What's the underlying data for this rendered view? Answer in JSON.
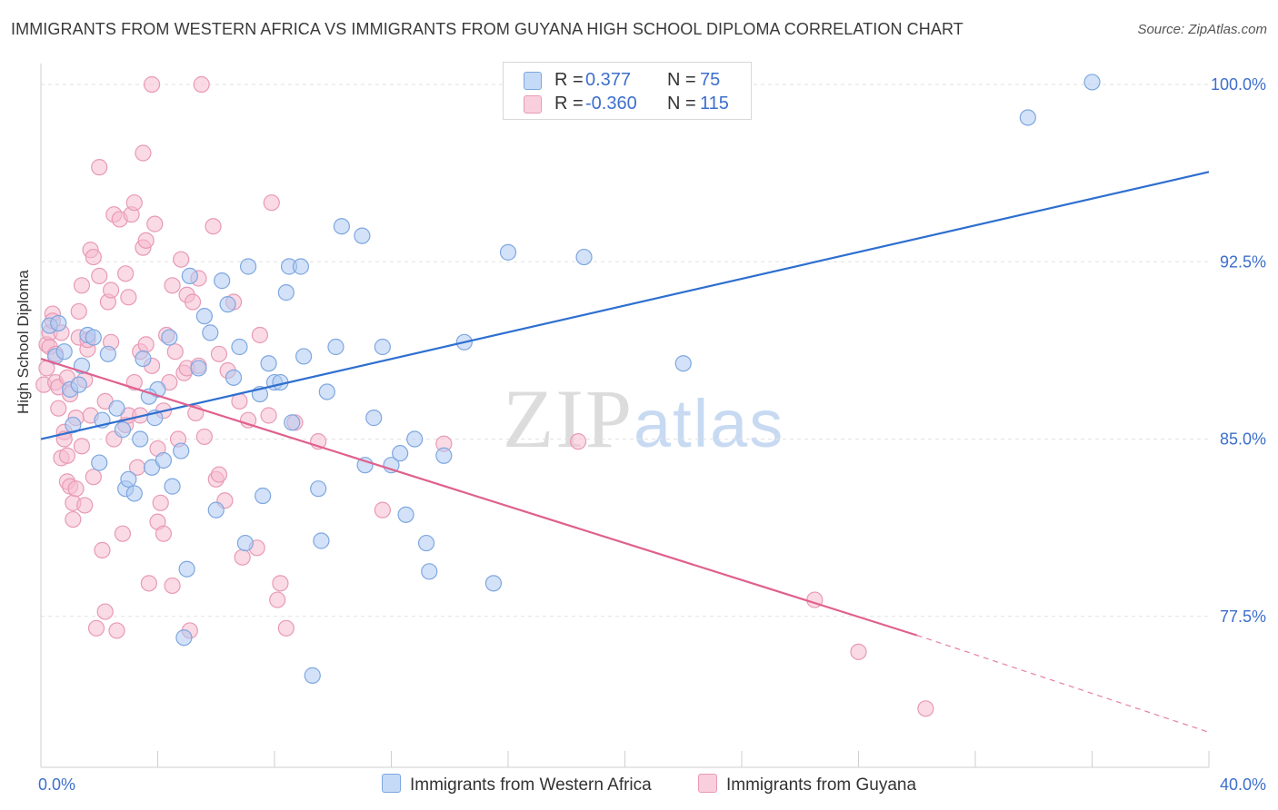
{
  "title": "IMMIGRANTS FROM WESTERN AFRICA VS IMMIGRANTS FROM GUYANA HIGH SCHOOL DIPLOMA CORRELATION CHART",
  "source": "Source: ZipAtlas.com",
  "watermark": {
    "zip": "ZIP",
    "atlas": "atlas"
  },
  "legend": {
    "r_label": "R =",
    "n_label": "N =",
    "rows": [
      {
        "r": "0.377",
        "n": "75",
        "color": "#9cc0ef"
      },
      {
        "r": "-0.360",
        "n": "115",
        "color": "#f4a9c2"
      }
    ]
  },
  "colors": {
    "blue_fill": "#aecbf2",
    "blue_stroke": "#7ea7e0",
    "blue_line": "#2e6fcf",
    "pink_fill": "#f6bcd0",
    "pink_stroke": "#e89ab5",
    "pink_line": "#e0608e",
    "tick_text": "#3d6fcc",
    "grid": "#e2e2e2"
  },
  "chart_data": {
    "type": "scatter",
    "title": "IMMIGRANTS FROM WESTERN AFRICA VS IMMIGRANTS FROM GUYANA HIGH SCHOOL DIPLOMA CORRELATION CHART",
    "xlabel": "",
    "ylabel": "High School Diploma",
    "xlim": [
      0,
      40
    ],
    "ylim": [
      71.5,
      100.5
    ],
    "x_tick_labels": [
      "0.0%",
      "40.0%"
    ],
    "y_ticks": [
      77.5,
      85.0,
      92.5,
      100.0
    ],
    "y_tick_labels": [
      "77.5%",
      "85.0%",
      "92.5%",
      "100.0%"
    ],
    "grid": true,
    "legend_position": "top-center",
    "series": [
      {
        "name": "Immigrants from Western Africa",
        "r": 0.377,
        "n": 75,
        "trend": {
          "x0": 0.0,
          "y0": 85.0,
          "x1": 40.0,
          "y1": 96.3
        },
        "points": [
          [
            0.3,
            89.8
          ],
          [
            0.5,
            88.5
          ],
          [
            0.6,
            89.9
          ],
          [
            0.8,
            88.7
          ],
          [
            1.0,
            87.1
          ],
          [
            1.1,
            85.6
          ],
          [
            1.4,
            88.1
          ],
          [
            1.6,
            89.4
          ],
          [
            1.8,
            89.3
          ],
          [
            2.1,
            85.8
          ],
          [
            2.3,
            88.6
          ],
          [
            2.6,
            86.3
          ],
          [
            2.8,
            85.4
          ],
          [
            2.9,
            82.9
          ],
          [
            3.0,
            83.3
          ],
          [
            3.2,
            82.7
          ],
          [
            3.4,
            85.0
          ],
          [
            3.5,
            88.4
          ],
          [
            3.8,
            83.8
          ],
          [
            3.9,
            85.9
          ],
          [
            4.0,
            87.1
          ],
          [
            4.2,
            84.1
          ],
          [
            4.4,
            89.3
          ],
          [
            4.5,
            83.0
          ],
          [
            4.8,
            84.5
          ],
          [
            5.0,
            79.5
          ],
          [
            5.1,
            91.9
          ],
          [
            5.4,
            88.0
          ],
          [
            5.6,
            90.2
          ],
          [
            5.8,
            89.5
          ],
          [
            6.0,
            82.0
          ],
          [
            6.2,
            91.7
          ],
          [
            6.4,
            90.7
          ],
          [
            6.6,
            87.6
          ],
          [
            6.8,
            88.9
          ],
          [
            7.0,
            80.6
          ],
          [
            7.1,
            92.3
          ],
          [
            7.5,
            86.9
          ],
          [
            7.6,
            82.6
          ],
          [
            7.8,
            88.2
          ],
          [
            8.0,
            87.4
          ],
          [
            8.2,
            87.4
          ],
          [
            8.4,
            91.2
          ],
          [
            8.5,
            92.3
          ],
          [
            8.6,
            85.7
          ],
          [
            8.9,
            92.3
          ],
          [
            9.0,
            88.5
          ],
          [
            9.3,
            75.0
          ],
          [
            9.5,
            82.9
          ],
          [
            9.6,
            80.7
          ],
          [
            9.8,
            87.0
          ],
          [
            10.1,
            88.9
          ],
          [
            10.3,
            94.0
          ],
          [
            11.0,
            93.6
          ],
          [
            11.1,
            83.9
          ],
          [
            11.4,
            85.9
          ],
          [
            11.7,
            88.9
          ],
          [
            12.0,
            83.9
          ],
          [
            12.3,
            84.4
          ],
          [
            12.5,
            81.8
          ],
          [
            12.8,
            85.0
          ],
          [
            13.2,
            80.6
          ],
          [
            13.3,
            79.4
          ],
          [
            13.8,
            84.3
          ],
          [
            14.5,
            89.1
          ],
          [
            15.5,
            78.9
          ],
          [
            16.0,
            92.9
          ],
          [
            18.6,
            92.7
          ],
          [
            22.0,
            88.2
          ],
          [
            33.8,
            98.6
          ],
          [
            36.0,
            100.1
          ],
          [
            4.9,
            76.6
          ],
          [
            1.3,
            87.3
          ],
          [
            3.7,
            86.8
          ],
          [
            2.0,
            84.0
          ]
        ]
      },
      {
        "name": "Immigrants from Guyana",
        "r": -0.36,
        "n": 115,
        "trend": {
          "x0": 0.0,
          "y0": 88.4,
          "x1": 30.0,
          "y1": 76.7
        },
        "trend_dashed": {
          "x0": 30.0,
          "y0": 76.7,
          "x1": 40.0,
          "y1": 72.6
        },
        "points": [
          [
            0.1,
            87.3
          ],
          [
            0.2,
            89.0
          ],
          [
            0.2,
            88.0
          ],
          [
            0.3,
            89.5
          ],
          [
            0.3,
            88.9
          ],
          [
            0.4,
            90.3
          ],
          [
            0.4,
            90.0
          ],
          [
            0.5,
            87.4
          ],
          [
            0.5,
            88.6
          ],
          [
            0.6,
            86.3
          ],
          [
            0.6,
            87.2
          ],
          [
            0.7,
            89.5
          ],
          [
            0.7,
            84.2
          ],
          [
            0.8,
            85.3
          ],
          [
            0.8,
            85.0
          ],
          [
            0.9,
            87.6
          ],
          [
            0.9,
            83.2
          ],
          [
            1.0,
            86.9
          ],
          [
            1.0,
            83.0
          ],
          [
            1.1,
            82.3
          ],
          [
            1.1,
            81.6
          ],
          [
            1.2,
            82.9
          ],
          [
            1.3,
            89.3
          ],
          [
            1.3,
            90.4
          ],
          [
            1.4,
            91.5
          ],
          [
            1.4,
            84.7
          ],
          [
            1.5,
            87.5
          ],
          [
            1.5,
            82.2
          ],
          [
            1.6,
            88.8
          ],
          [
            1.6,
            89.2
          ],
          [
            1.7,
            93.0
          ],
          [
            1.7,
            86.0
          ],
          [
            1.8,
            92.7
          ],
          [
            1.8,
            83.4
          ],
          [
            1.9,
            77.0
          ],
          [
            2.0,
            91.9
          ],
          [
            2.0,
            96.5
          ],
          [
            2.1,
            80.3
          ],
          [
            2.2,
            77.7
          ],
          [
            2.2,
            86.6
          ],
          [
            2.3,
            90.8
          ],
          [
            2.4,
            91.3
          ],
          [
            2.4,
            89.1
          ],
          [
            2.5,
            94.5
          ],
          [
            2.5,
            85.0
          ],
          [
            2.6,
            76.9
          ],
          [
            2.7,
            94.3
          ],
          [
            2.8,
            81.0
          ],
          [
            2.9,
            85.6
          ],
          [
            3.0,
            86.0
          ],
          [
            3.0,
            91.0
          ],
          [
            3.1,
            94.5
          ],
          [
            3.2,
            87.4
          ],
          [
            3.2,
            95.0
          ],
          [
            3.3,
            83.8
          ],
          [
            3.4,
            86.0
          ],
          [
            3.4,
            88.7
          ],
          [
            3.5,
            97.1
          ],
          [
            3.5,
            93.1
          ],
          [
            3.6,
            93.4
          ],
          [
            3.7,
            78.9
          ],
          [
            3.8,
            100.0
          ],
          [
            3.8,
            88.1
          ],
          [
            3.9,
            94.1
          ],
          [
            4.0,
            81.5
          ],
          [
            4.0,
            84.6
          ],
          [
            4.1,
            82.3
          ],
          [
            4.2,
            86.2
          ],
          [
            4.2,
            81.0
          ],
          [
            4.3,
            89.4
          ],
          [
            4.4,
            87.4
          ],
          [
            4.5,
            91.5
          ],
          [
            4.5,
            78.8
          ],
          [
            4.6,
            88.7
          ],
          [
            4.7,
            85.0
          ],
          [
            4.8,
            92.6
          ],
          [
            4.9,
            87.8
          ],
          [
            5.0,
            88.0
          ],
          [
            5.0,
            91.1
          ],
          [
            5.1,
            76.9
          ],
          [
            5.2,
            90.8
          ],
          [
            5.3,
            86.1
          ],
          [
            5.4,
            88.1
          ],
          [
            5.4,
            91.8
          ],
          [
            5.5,
            100.0
          ],
          [
            5.6,
            85.1
          ],
          [
            5.9,
            94.0
          ],
          [
            6.0,
            83.3
          ],
          [
            6.1,
            88.6
          ],
          [
            6.3,
            82.4
          ],
          [
            6.4,
            87.9
          ],
          [
            6.6,
            90.8
          ],
          [
            6.8,
            86.6
          ],
          [
            6.9,
            80.0
          ],
          [
            7.1,
            85.8
          ],
          [
            7.4,
            80.4
          ],
          [
            7.5,
            89.4
          ],
          [
            7.8,
            86.0
          ],
          [
            7.9,
            95.0
          ],
          [
            8.1,
            78.2
          ],
          [
            8.2,
            78.9
          ],
          [
            8.4,
            77.0
          ],
          [
            8.7,
            85.7
          ],
          [
            9.5,
            84.9
          ],
          [
            11.7,
            82.0
          ],
          [
            13.8,
            84.8
          ],
          [
            18.4,
            84.9
          ],
          [
            26.5,
            78.2
          ],
          [
            28.0,
            76.0
          ],
          [
            30.3,
            73.6
          ],
          [
            1.2,
            85.9
          ],
          [
            2.9,
            92.0
          ],
          [
            3.6,
            89.0
          ],
          [
            0.9,
            84.3
          ],
          [
            6.1,
            83.5
          ]
        ]
      }
    ]
  },
  "bottom_legend": [
    {
      "label": "Immigrants from Western Africa",
      "color": "#aecbf2"
    },
    {
      "label": "Immigrants from Guyana",
      "color": "#f6bcd0"
    }
  ]
}
